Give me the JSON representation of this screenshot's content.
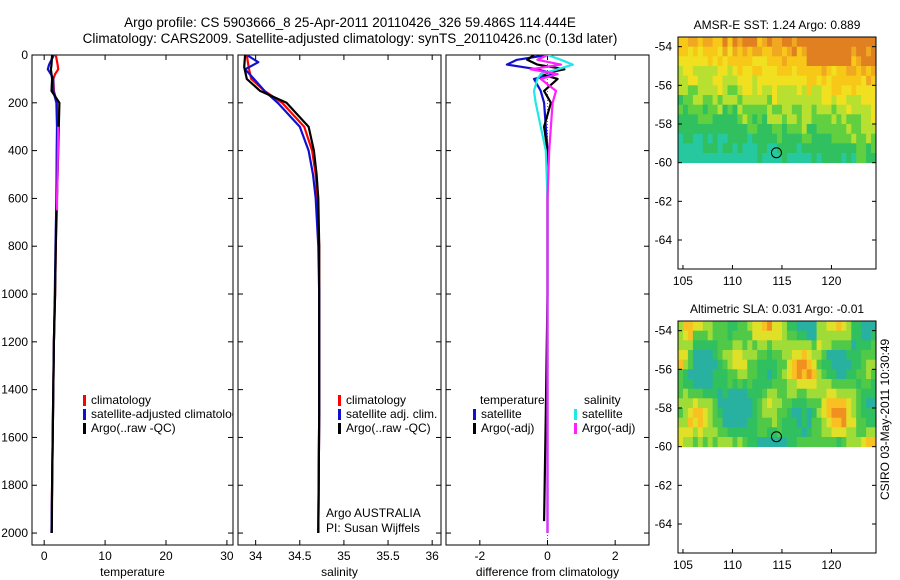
{
  "title": {
    "line1": "Argo profile: CS 5903666_8 25-Apr-2011 20110426_326 59.486S 114.444E",
    "line2": "Climatology: CARS2009. Satellite-adjusted climatology: synTS_20110426.nc (0.13d later)"
  },
  "footer": "CSIRO 03-May-2011 10:30:49",
  "colors": {
    "red": "#ff0000",
    "blue": "#1010d0",
    "black": "#000000",
    "cyan": "#20e8e8",
    "magenta": "#ff20ff"
  },
  "chart_data": [
    {
      "type": "line",
      "name": "temperature",
      "xlabel": "temperature",
      "ylabel": "",
      "xlim": [
        -2,
        31
      ],
      "ylim": [
        0,
        2050
      ],
      "y_inverted": true,
      "xticks": [
        0,
        10,
        20,
        30
      ],
      "yticks": [
        0,
        200,
        400,
        600,
        800,
        1000,
        1200,
        1400,
        1600,
        1800,
        2000
      ],
      "legend": [
        "climatology",
        "satellite-adjusted climatology",
        "Argo(..raw -QC)"
      ],
      "series": [
        {
          "name": "climatology",
          "color": "red",
          "depth": [
            0,
            40,
            60,
            80,
            100,
            150,
            200,
            300,
            400,
            600,
            800,
            1000,
            1200,
            1400,
            1600,
            1800,
            2000
          ],
          "values": [
            1.9,
            2.2,
            2.3,
            1.8,
            1.5,
            1.6,
            2.1,
            2.15,
            2.1,
            2.0,
            1.9,
            1.8,
            1.6,
            1.5,
            1.4,
            1.3,
            1.2
          ]
        },
        {
          "name": "satellite-adjusted climatology",
          "color": "blue",
          "depth": [
            0,
            40,
            60,
            80,
            100,
            150,
            200,
            300,
            400,
            600,
            800,
            1000,
            1200,
            1400,
            1600,
            1800,
            2000
          ],
          "values": [
            1.6,
            0.8,
            0.6,
            1.1,
            1.5,
            1.5,
            2.0,
            2.1,
            2.05,
            2.0,
            1.85,
            1.75,
            1.6,
            1.5,
            1.4,
            1.3,
            1.2
          ]
        },
        {
          "name": "Argo(..raw -QC)",
          "color": "black",
          "depth": [
            0,
            40,
            60,
            80,
            100,
            150,
            200,
            300,
            400,
            600,
            800,
            1000,
            1200,
            1400,
            1600,
            1800,
            2000
          ],
          "values": [
            1.3,
            1.2,
            1.1,
            1.2,
            1.3,
            1.2,
            2.5,
            2.4,
            2.3,
            2.1,
            1.9,
            1.8,
            1.6,
            1.5,
            1.4,
            1.3,
            1.25
          ]
        },
        {
          "name": "Argo(-adj)",
          "color": "magenta",
          "depth": [
            300,
            400,
            500,
            600,
            650
          ],
          "values": [
            2.3,
            2.25,
            2.2,
            2.1,
            2.1
          ]
        }
      ]
    },
    {
      "type": "line",
      "name": "salinity",
      "xlabel": "salinity",
      "ylabel": "",
      "xlim": [
        33.8,
        36.1
      ],
      "ylim": [
        0,
        2050
      ],
      "y_inverted": true,
      "xticks": [
        34,
        34.5,
        35,
        35.5,
        36
      ],
      "xticklabels": [
        "34",
        "34.5",
        "35",
        "35.5",
        "36"
      ],
      "legend": [
        "climatology",
        "satellite adj. clim.",
        "Argo(..raw -QC)"
      ],
      "annotation": [
        "Argo AUSTRALIA",
        "PI: Susan Wijffels"
      ],
      "series": [
        {
          "name": "climatology",
          "color": "red",
          "depth": [
            0,
            50,
            100,
            150,
            200,
            300,
            400,
            500,
            600,
            800,
            1000,
            1500,
            2000
          ],
          "values": [
            33.9,
            33.92,
            33.95,
            34.1,
            34.3,
            34.55,
            34.64,
            34.68,
            34.7,
            34.72,
            34.72,
            34.72,
            34.71
          ]
        },
        {
          "name": "satellite adj. clim.",
          "color": "blue",
          "depth": [
            0,
            30,
            60,
            100,
            150,
            200,
            300,
            400,
            500,
            600,
            800,
            1000,
            1500,
            2000
          ],
          "values": [
            33.9,
            34.03,
            33.88,
            33.98,
            34.1,
            34.25,
            34.5,
            34.6,
            34.65,
            34.68,
            34.71,
            34.72,
            34.72,
            34.71
          ]
        },
        {
          "name": "Argo(..raw -QC)",
          "color": "black",
          "depth": [
            0,
            50,
            100,
            150,
            200,
            300,
            400,
            500,
            600,
            800,
            1000,
            1500,
            2000
          ],
          "values": [
            33.88,
            33.87,
            33.9,
            34.05,
            34.35,
            34.6,
            34.66,
            34.69,
            34.71,
            34.72,
            34.72,
            34.72,
            34.71
          ]
        }
      ]
    },
    {
      "type": "line",
      "name": "difference",
      "xlabel": "difference from climatology",
      "ylabel": "",
      "xlim": [
        -3,
        3
      ],
      "ylim": [
        0,
        2050
      ],
      "y_inverted": true,
      "xticks": [
        -2,
        0,
        2
      ],
      "legend_header": [
        "temperature",
        "salinity"
      ],
      "legend": [
        "satellite",
        "Argo(-adj)",
        "satellite",
        "Argo(-adj)"
      ],
      "series": [
        {
          "name": "temperature satellite",
          "color": "blue",
          "depth": [
            0,
            20,
            40,
            60,
            80,
            100,
            150,
            200,
            300,
            400,
            600,
            1000,
            1500,
            2000
          ],
          "values": [
            0,
            -0.9,
            -1.2,
            -0.3,
            0.2,
            -0.4,
            -0.2,
            -0.1,
            -0.05,
            0,
            0,
            0,
            0,
            0
          ]
        },
        {
          "name": "temperature Argo(-adj)",
          "color": "black",
          "depth": [
            0,
            20,
            40,
            60,
            80,
            100,
            150,
            200,
            300,
            400,
            600,
            1000,
            1500,
            1950
          ],
          "values": [
            -0.4,
            -0.6,
            -0.3,
            0.5,
            -0.2,
            0.3,
            -0.1,
            0.1,
            -0.1,
            0,
            0,
            0,
            -0.05,
            -0.1
          ]
        },
        {
          "name": "salinity satellite",
          "color": "cyan",
          "depth": [
            0,
            20,
            40,
            60,
            80,
            100,
            150,
            200,
            300,
            400,
            600,
            1000,
            1500,
            2000
          ],
          "values": [
            0,
            0.4,
            0.75,
            0.3,
            -0.2,
            -0.3,
            -0.4,
            -0.35,
            -0.2,
            -0.05,
            0,
            0,
            0,
            0
          ]
        },
        {
          "name": "salinity Argo(-adj)",
          "color": "magenta",
          "depth": [
            0,
            20,
            40,
            60,
            80,
            100,
            150,
            200,
            300,
            400,
            600,
            1000,
            1500,
            2000
          ],
          "values": [
            0,
            -0.3,
            0.4,
            -0.5,
            0.3,
            -0.2,
            0.25,
            0.15,
            0.1,
            0.05,
            0,
            0,
            0,
            0
          ]
        }
      ]
    },
    {
      "type": "heatmap",
      "name": "sst",
      "title": "AMSR-E SST: 1.24  Argo: 0.889",
      "xlim": [
        104.5,
        124.5
      ],
      "ylim": [
        -65.5,
        -53.5
      ],
      "xticks": [
        105,
        110,
        115,
        120
      ],
      "yticks": [
        -54,
        -56,
        -58,
        -60,
        -62,
        -64
      ],
      "data_lat_range": [
        -60,
        -53.5
      ],
      "marker": {
        "lon": 114.444,
        "lat": -59.486
      }
    },
    {
      "type": "heatmap",
      "name": "sla",
      "title": "Altimetric SLA: 0.031  Argo: -0.01",
      "xlim": [
        104.5,
        124.5
      ],
      "ylim": [
        -65.5,
        -53.5
      ],
      "xticks": [
        105,
        110,
        115,
        120
      ],
      "yticks": [
        -54,
        -56,
        -58,
        -60,
        -62,
        -64
      ],
      "data_lat_range": [
        -60,
        -53.5
      ],
      "marker": {
        "lon": 114.444,
        "lat": -59.486
      }
    }
  ]
}
